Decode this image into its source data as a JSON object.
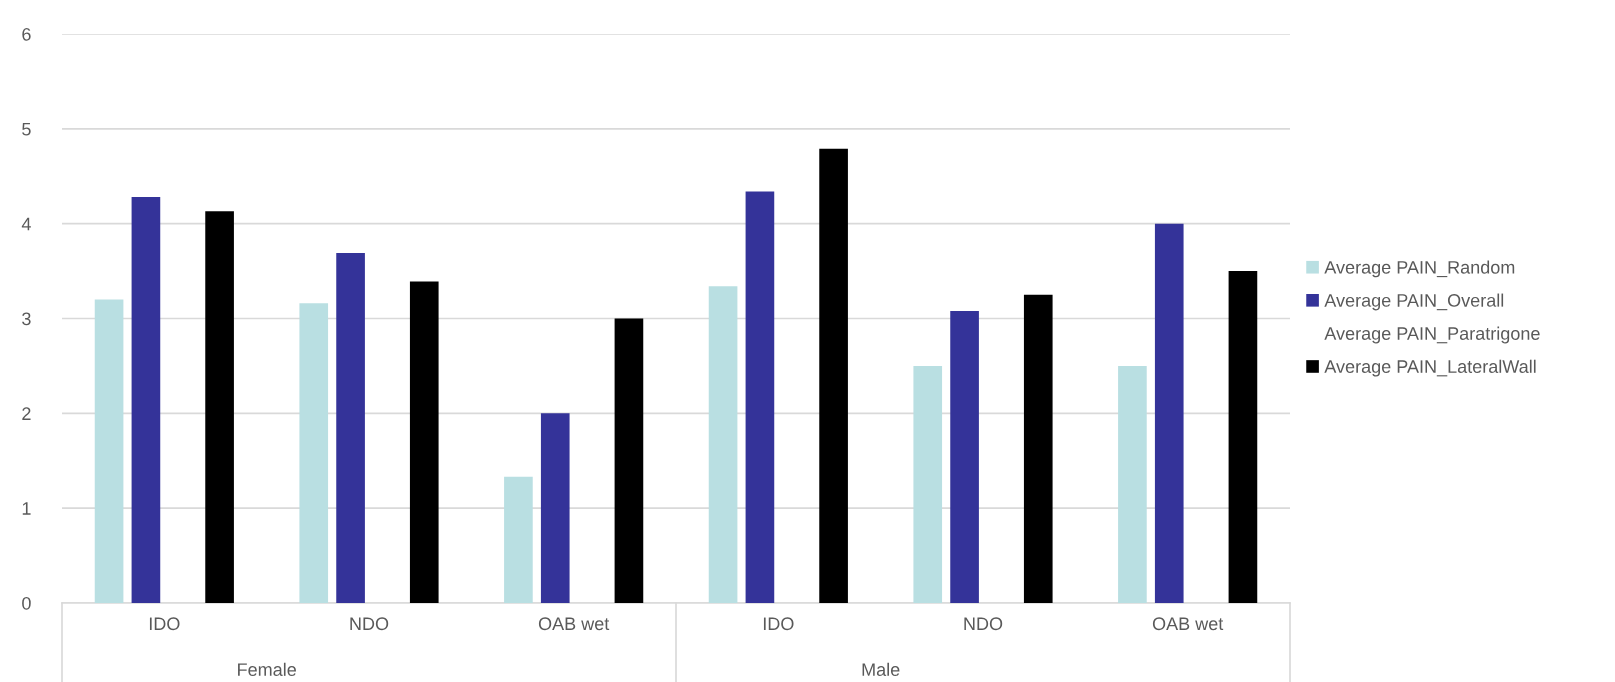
{
  "chart_data": {
    "type": "bar",
    "categories": [
      "IDO",
      "NDO",
      "OAB wet",
      "IDO",
      "NDO",
      "OAB wet"
    ],
    "series": [
      {
        "name": "Average PAIN_Random",
        "color": "#b9dfe2",
        "values": [
          3.2,
          3.16,
          1.33,
          3.34,
          2.5,
          2.5
        ]
      },
      {
        "name": "Average PAIN_Overall",
        "color": "#343399",
        "values": [
          4.28,
          3.69,
          2.0,
          4.34,
          3.08,
          4.0
        ]
      },
      {
        "name": "Average PAIN_Paratrigone",
        "values": [
          null,
          null,
          null,
          null,
          null,
          null
        ]
      },
      {
        "name": "Average PAIN_LateralWall",
        "color": "#000000",
        "values": [
          4.13,
          3.39,
          3.0,
          4.79,
          3.25,
          3.5
        ]
      }
    ],
    "annotations": [
      "Female",
      "Male"
    ],
    "ylim": [
      0,
      6
    ],
    "yticks": [
      0,
      1,
      2,
      3,
      4,
      5,
      6
    ],
    "grid": "y",
    "legend": "right"
  }
}
